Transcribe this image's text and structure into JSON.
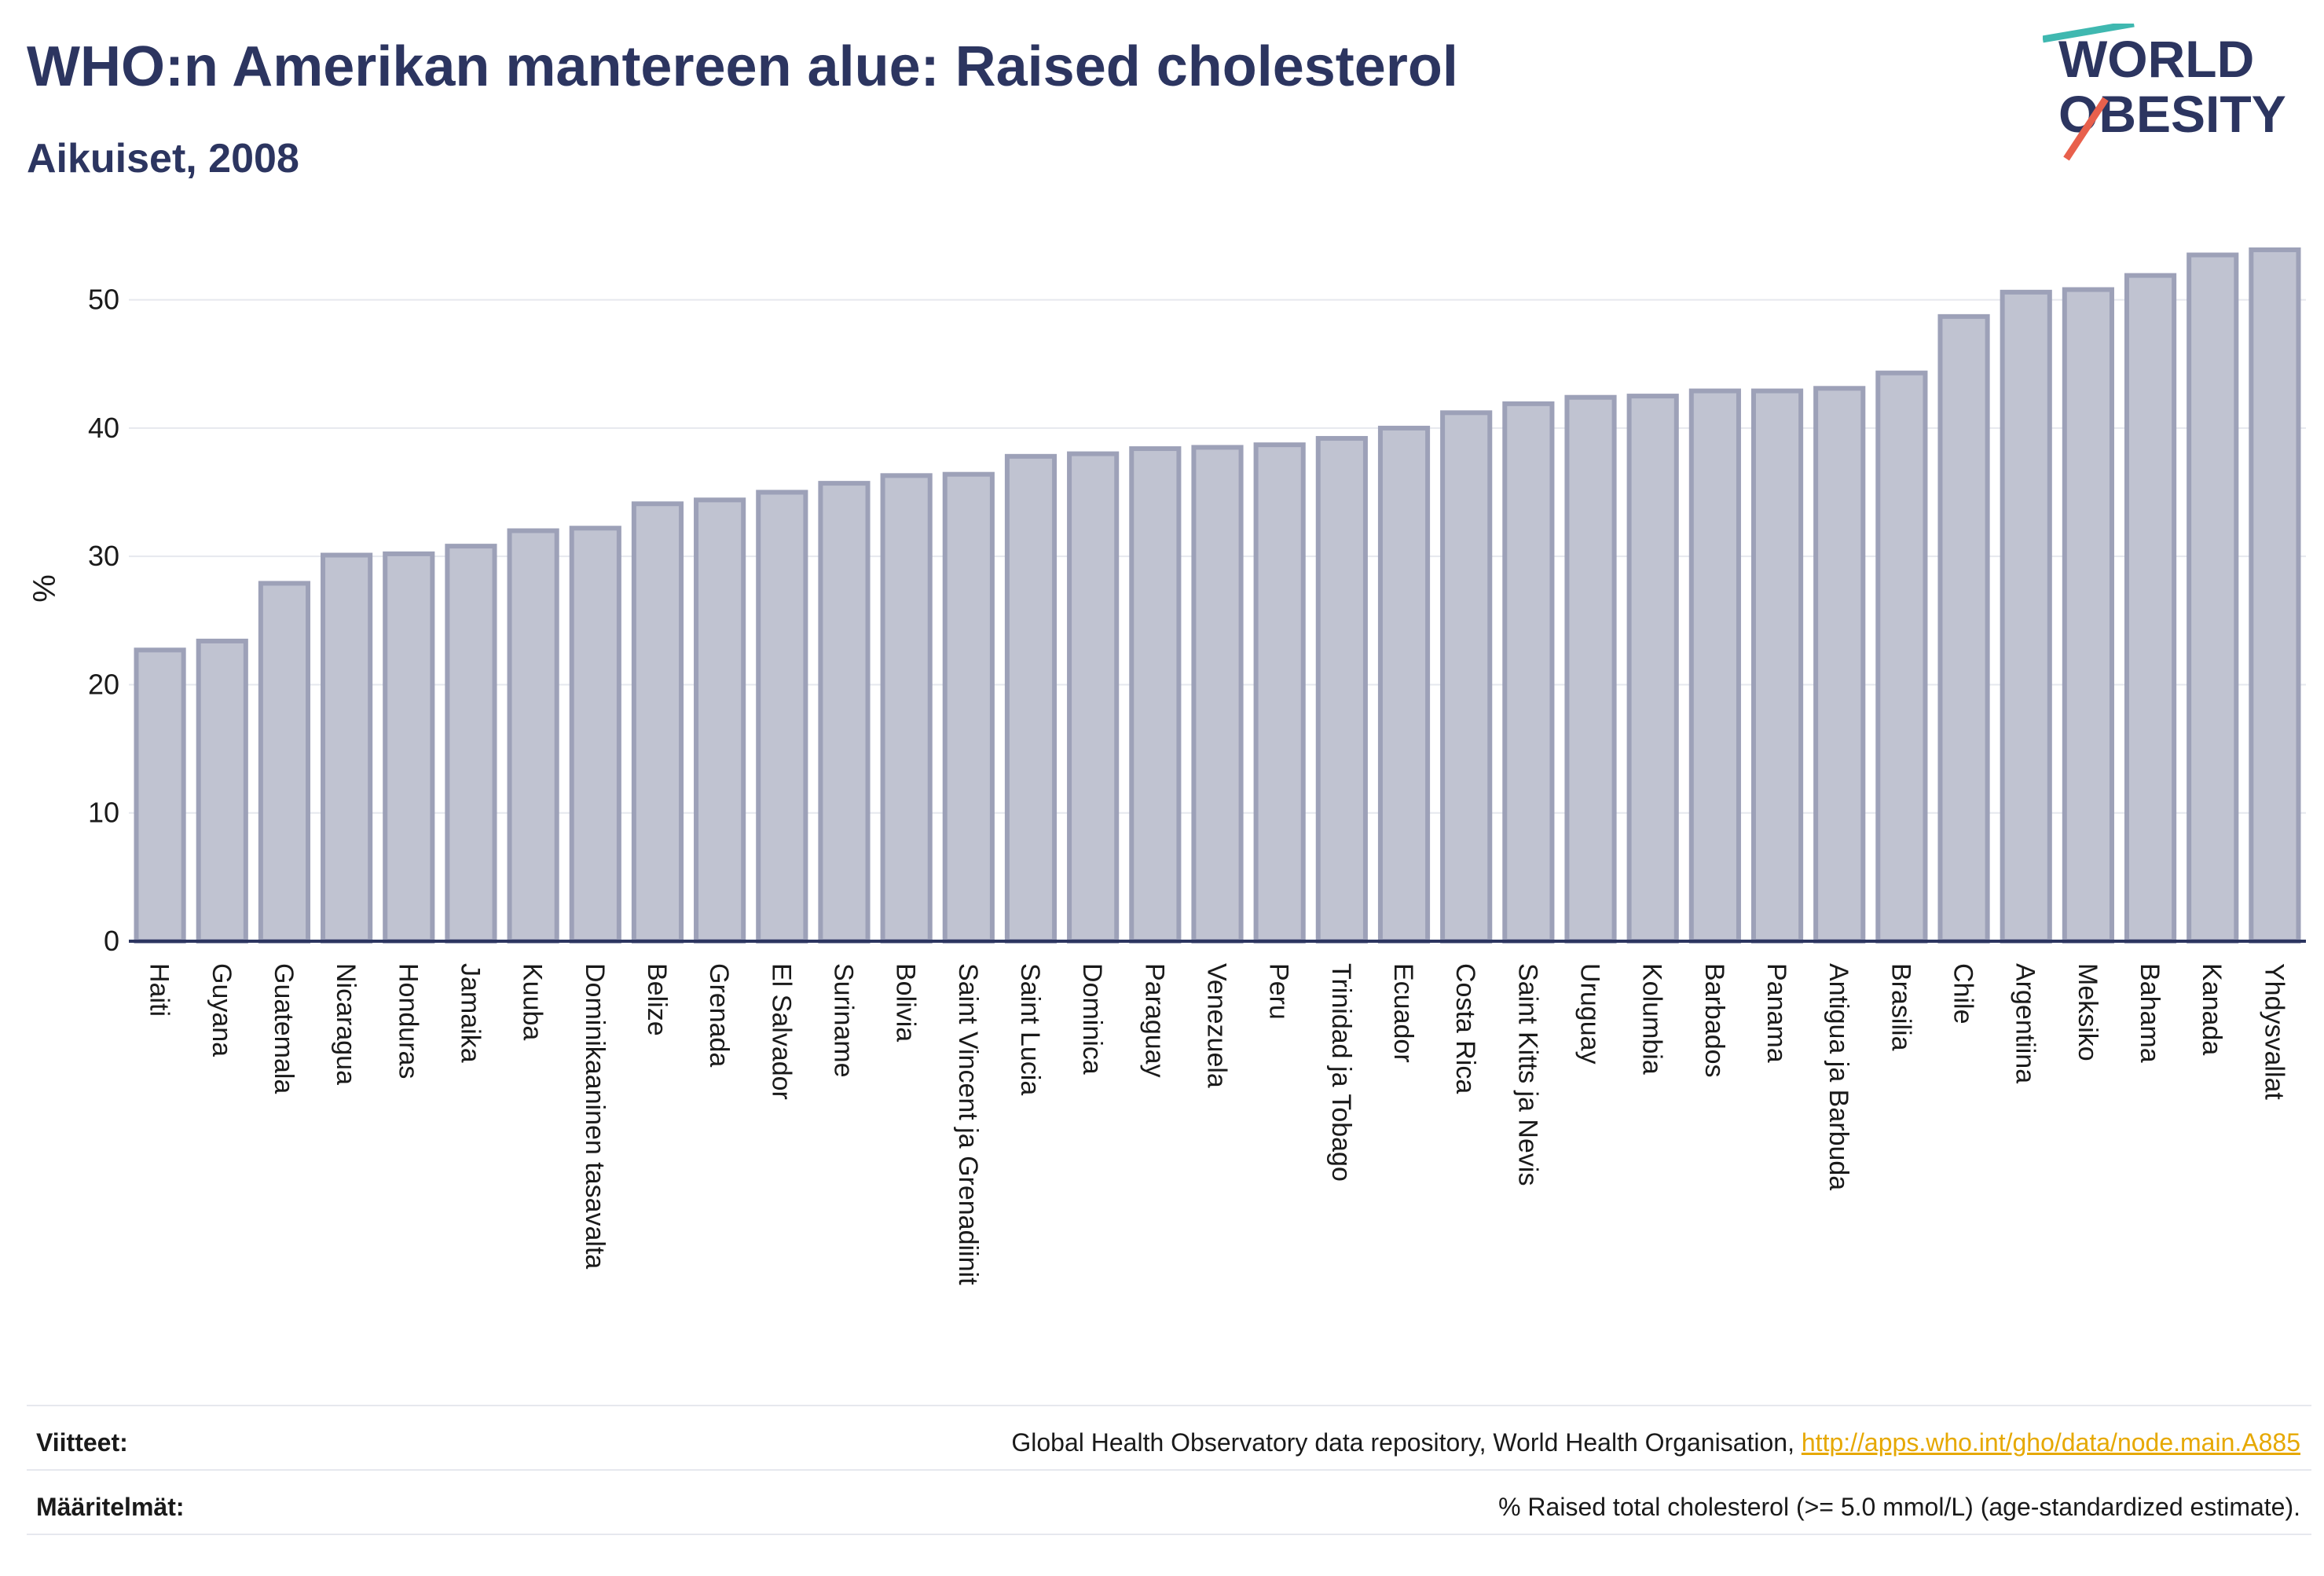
{
  "header": {
    "title": "WHO:n Amerikan mantereen alue: Raised cholesterol",
    "subtitle": "Aikuiset, 2008"
  },
  "logo": {
    "line1": "WORLD",
    "line2": "OBESITY",
    "colors": {
      "text": "#2c3560",
      "accent_teal": "#3fb8b0",
      "accent_red": "#e8604c"
    }
  },
  "chart_data": {
    "type": "bar",
    "ylabel": "%",
    "ylim": [
      0,
      55
    ],
    "yticks": [
      0,
      10,
      20,
      30,
      40,
      50
    ],
    "grid": true,
    "bar_color": "#c0c3d1",
    "bar_edge_color": "#9da1b8",
    "categories": [
      "Haiti",
      "Guyana",
      "Guatemala",
      "Nicaragua",
      "Honduras",
      "Jamaika",
      "Kuuba",
      "Dominikaaninen tasavalta",
      "Belize",
      "Grenada",
      "El Salvador",
      "Suriname",
      "Bolivia",
      "Saint Vincent ja Grenadiinit",
      "Saint Lucia",
      "Dominica",
      "Paraguay",
      "Venezuela",
      "Peru",
      "Trinidad ja Tobago",
      "Ecuador",
      "Costa Rica",
      "Saint Kitts ja Nevis",
      "Uruguay",
      "Kolumbia",
      "Barbados",
      "Panama",
      "Antigua ja Barbuda",
      "Brasilia",
      "Chile",
      "Argentiina",
      "Meksiko",
      "Bahama",
      "Kanada",
      "Yhdysvallat"
    ],
    "values": [
      22.7,
      23.4,
      27.9,
      30.1,
      30.2,
      30.8,
      32.0,
      32.2,
      34.1,
      34.4,
      35.0,
      35.7,
      36.3,
      36.4,
      37.8,
      38.0,
      38.4,
      38.5,
      38.7,
      39.2,
      40.0,
      41.2,
      41.9,
      42.4,
      42.5,
      42.9,
      42.9,
      43.1,
      44.3,
      48.7,
      50.6,
      50.8,
      51.9,
      53.5,
      53.9
    ]
  },
  "footer": {
    "sources_label": "Viitteet:",
    "sources_text": "Global Health Observatory data repository, World Health Organisation, ",
    "sources_link": "http://apps.who.int/gho/data/node.main.A885",
    "definitions_label": "Määritelmät:",
    "definitions_text": "% Raised total cholesterol (>= 5.0 mmol/L) (age-standardized estimate)."
  }
}
